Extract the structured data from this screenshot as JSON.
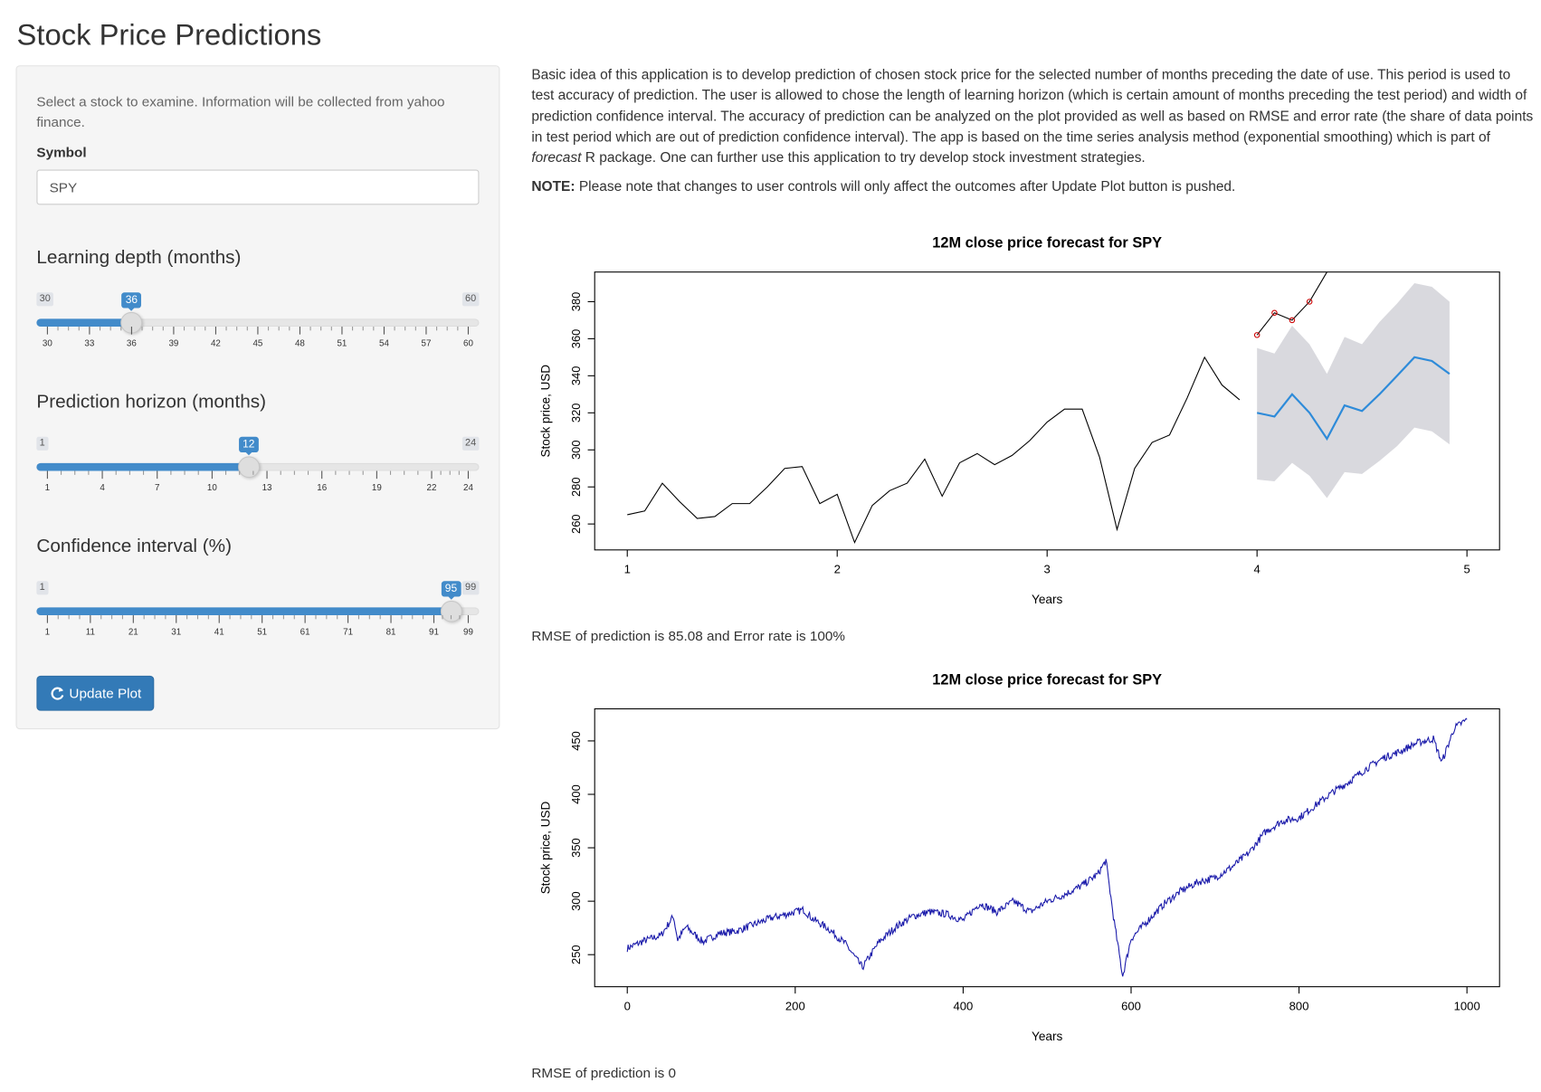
{
  "page": {
    "title": "Stock Price Predictions"
  },
  "sidebar": {
    "intro": "Select a stock to examine. Information will be collected from yahoo finance.",
    "symbol_label": "Symbol",
    "symbol_value": "SPY",
    "sliders": [
      {
        "label": "Learning depth (months)",
        "min": 30,
        "max": 60,
        "value": 36,
        "min_text": "30",
        "max_text": "60",
        "value_text": "36",
        "ticks": [
          "30",
          "33",
          "36",
          "39",
          "42",
          "45",
          "48",
          "51",
          "54",
          "57",
          "60"
        ]
      },
      {
        "label": "Prediction horizon (months)",
        "min": 1,
        "max": 24,
        "value": 12,
        "min_text": "1",
        "max_text": "24",
        "value_text": "12",
        "ticks": [
          "1",
          "4",
          "7",
          "10",
          "13",
          "16",
          "19",
          "22",
          "24"
        ]
      },
      {
        "label": "Confidence interval (%)",
        "min": 1,
        "max": 99,
        "value": 95,
        "min_text": "1",
        "max_text": "99",
        "value_text": "95",
        "ticks": [
          "1",
          "11",
          "21",
          "31",
          "41",
          "51",
          "61",
          "71",
          "81",
          "91",
          "99"
        ]
      }
    ],
    "update_button": "Update Plot",
    "button_icon": "refresh-icon"
  },
  "main": {
    "description_parts": {
      "before": "Basic idea of this application is to develop prediction of chosen stock price for the selected number of months preceding the date of use. This period is used to test accuracy of prediction. The user is allowed to chose the length of learning horizon (which is certain amount of months preceding the test period) and width of prediction confidence interval. The accuracy of prediction can be analyzed on the plot provided as well as based on RMSE and error rate (the share of data points in test period which are out of prediction confidence interval). The app is based on the time series analysis method (exponential smoothing) which is part of ",
      "italic": "forecast",
      "after": " R package. One can further use this application to try develop stock investment strategies."
    },
    "note_label": "NOTE:",
    "note_text": " Please note that changes to user controls will only affect the outcomes after Update Plot button is pushed.",
    "rmse1": "RMSE of prediction is 85.08 and Error rate is 100%",
    "rmse2": "RMSE of prediction is 0"
  },
  "chart_data": [
    {
      "type": "line",
      "title": "12M close price forecast for SPY",
      "xlabel": "Years",
      "ylabel": "Stock price, USD",
      "xlim": [
        1,
        5
      ],
      "ylim": [
        246,
        396
      ],
      "xticks": [
        "1",
        "2",
        "3",
        "4",
        "5"
      ],
      "yticks": [
        "260",
        "280",
        "300",
        "320",
        "340",
        "360",
        "380"
      ],
      "colors": {
        "history": "#000000",
        "forecast": "#2e8bd9",
        "band": "#d9d9de",
        "actual": "#cc0000"
      },
      "series": [
        {
          "role": "history",
          "x": [
            1,
            1.083,
            1.167,
            1.25,
            1.333,
            1.417,
            1.5,
            1.583,
            1.667,
            1.75,
            1.833,
            1.917,
            2,
            2.083,
            2.167,
            2.25,
            2.333,
            2.417,
            2.5,
            2.583,
            2.667,
            2.75,
            2.833,
            2.917,
            3,
            3.083,
            3.167,
            3.25,
            3.333,
            3.417,
            3.5,
            3.583,
            3.667,
            3.75,
            3.833,
            3.917
          ],
          "y": [
            265,
            267,
            282,
            272,
            263,
            264,
            271,
            271,
            280,
            290,
            291,
            271,
            276,
            250,
            270,
            278,
            282,
            295,
            275,
            293,
            298,
            292,
            297,
            305,
            315,
            322,
            322,
            296,
            257,
            290,
            304,
            308,
            328,
            350,
            335,
            327
          ]
        },
        {
          "role": "forecast",
          "x": [
            4,
            4.083,
            4.167,
            4.25,
            4.333,
            4.417,
            4.5,
            4.583,
            4.667,
            4.75,
            4.833,
            4.917
          ],
          "y": [
            320,
            318,
            330,
            320,
            306,
            324,
            321,
            330,
            340,
            350,
            348,
            341
          ]
        },
        {
          "role": "band",
          "x": [
            4,
            4.083,
            4.167,
            4.25,
            4.333,
            4.417,
            4.5,
            4.583,
            4.667,
            4.75,
            4.833,
            4.917
          ],
          "lower": [
            284,
            283,
            293,
            286,
            274,
            288,
            287,
            294,
            302,
            312,
            310,
            303
          ],
          "upper": [
            355,
            352,
            367,
            357,
            341,
            361,
            357,
            369,
            379,
            390,
            388,
            380
          ]
        },
        {
          "role": "actual",
          "x": [
            4,
            4.083,
            4.167,
            4.25,
            4.333
          ],
          "y": [
            362,
            374,
            370,
            380,
            396
          ]
        }
      ]
    },
    {
      "type": "line",
      "title": "12M close price forecast for SPY",
      "xlabel": "Years",
      "ylabel": "Stock price, USD",
      "xlim": [
        0,
        1000
      ],
      "ylim": [
        220,
        480
      ],
      "xticks": [
        "0",
        "200",
        "400",
        "600",
        "800",
        "1000"
      ],
      "yticks": [
        "250",
        "300",
        "350",
        "400",
        "450"
      ],
      "colors": {
        "series": "#1a1aaa"
      },
      "series": [
        {
          "x": [
            0,
            20,
            40,
            55,
            60,
            70,
            90,
            110,
            130,
            150,
            170,
            190,
            210,
            220,
            240,
            260,
            280,
            300,
            320,
            340,
            360,
            380,
            400,
            420,
            440,
            460,
            480,
            500,
            520,
            540,
            560,
            570,
            580,
            590,
            600,
            620,
            640,
            660,
            680,
            700,
            720,
            740,
            760,
            780,
            800,
            820,
            840,
            860,
            880,
            900,
            920,
            940,
            960,
            970,
            985,
            1000
          ],
          "y": [
            256,
            263,
            268,
            286,
            264,
            276,
            262,
            270,
            272,
            278,
            284,
            288,
            292,
            284,
            274,
            260,
            238,
            262,
            276,
            286,
            290,
            288,
            282,
            298,
            290,
            300,
            290,
            300,
            306,
            314,
            325,
            338,
            280,
            230,
            265,
            282,
            298,
            310,
            318,
            322,
            332,
            345,
            365,
            375,
            378,
            390,
            402,
            412,
            424,
            434,
            440,
            448,
            452,
            430,
            462,
            470
          ]
        }
      ]
    }
  ]
}
